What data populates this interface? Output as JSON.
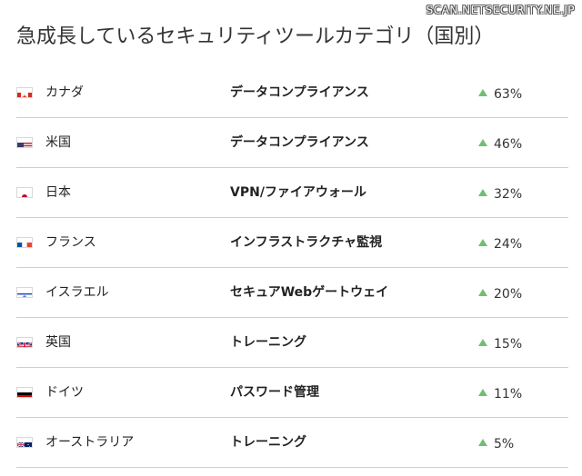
{
  "watermark": "SCAN.NETSECURITY.NE.JP",
  "title": "急成長しているセキュリティツールカテゴリ（国別）",
  "colors": {
    "arrow": "#6fbf73",
    "divider": "#cfcfcf"
  },
  "rows": [
    {
      "flag_icon": "canada-flag-icon",
      "country": "カナダ",
      "category": "データコンプライアンス",
      "growth": "63%"
    },
    {
      "flag_icon": "usa-flag-icon",
      "country": "米国",
      "category": "データコンプライアンス",
      "growth": "46%"
    },
    {
      "flag_icon": "japan-flag-icon",
      "country": "日本",
      "category": "VPN/ファイアウォール",
      "growth": "32%"
    },
    {
      "flag_icon": "france-flag-icon",
      "country": "フランス",
      "category": "インフラストラクチャ監視",
      "growth": "24%"
    },
    {
      "flag_icon": "israel-flag-icon",
      "country": "イスラエル",
      "category": "セキュアWebゲートウェイ",
      "growth": "20%"
    },
    {
      "flag_icon": "uk-flag-icon",
      "country": "英国",
      "category": "トレーニング",
      "growth": "15%"
    },
    {
      "flag_icon": "germany-flag-icon",
      "country": "ドイツ",
      "category": "パスワード管理",
      "growth": "11%"
    },
    {
      "flag_icon": "australia-flag-icon",
      "country": "オーストラリア",
      "category": "トレーニング",
      "growth": "5%"
    }
  ]
}
